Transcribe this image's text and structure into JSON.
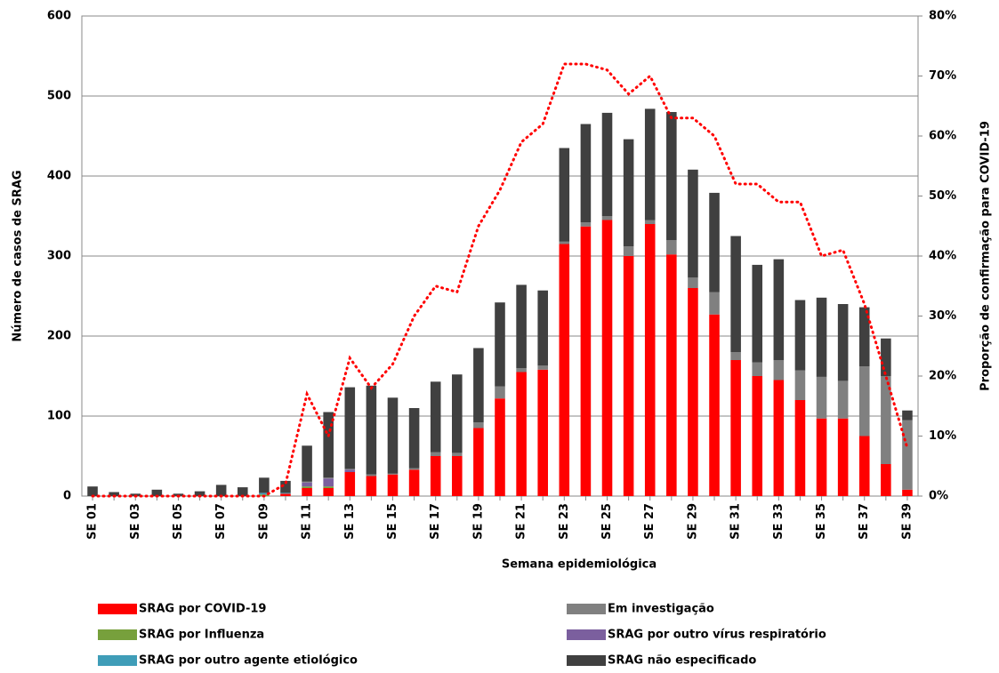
{
  "chart_data": {
    "type": "bar",
    "x_label": "Semana epidemiológica",
    "y_label": "Número de casos de SRAG",
    "y2_label": "Proporção de confirmação para COVID-19",
    "stacked": true,
    "grid": true,
    "categories": [
      "SE 01",
      null,
      "SE 03",
      null,
      "SE 05",
      null,
      "SE 07",
      null,
      "SE 09",
      null,
      "SE 11",
      null,
      "SE 13",
      null,
      "SE 15",
      null,
      "SE 17",
      null,
      "SE 19",
      null,
      "SE 21",
      null,
      "SE 23",
      null,
      "SE 25",
      null,
      "SE 27",
      null,
      "SE 29",
      null,
      "SE 31",
      null,
      "SE 33",
      null,
      "SE 35",
      null,
      "SE 37",
      null,
      "SE 39"
    ],
    "ylim": [
      0,
      600
    ],
    "yticks": [
      0,
      100,
      200,
      300,
      400,
      500,
      600
    ],
    "y2lim": [
      0,
      80
    ],
    "y2ticks": [
      {
        "value": 0,
        "label": "0%"
      },
      {
        "value": 10,
        "label": "10%"
      },
      {
        "value": 20,
        "label": "20%"
      },
      {
        "value": 30,
        "label": "30%"
      },
      {
        "value": 40,
        "label": "40%"
      },
      {
        "value": 50,
        "label": "50%"
      },
      {
        "value": 60,
        "label": "60%"
      },
      {
        "value": 70,
        "label": "70%"
      },
      {
        "value": 80,
        "label": "80%"
      }
    ],
    "series": [
      {
        "name": "SRAG por COVID-19",
        "color": "#ff0000",
        "values": [
          0,
          0,
          0,
          0,
          0,
          0,
          0,
          0,
          0,
          3,
          10,
          10,
          30,
          25,
          27,
          33,
          50,
          50,
          85,
          122,
          155,
          158,
          315,
          337,
          345,
          300,
          340,
          302,
          260,
          227,
          170,
          150,
          145,
          120,
          97,
          97,
          75,
          40,
          8
        ]
      },
      {
        "name": "SRAG por Influenza",
        "color": "#77a03c",
        "values": [
          0,
          0,
          0,
          0,
          0,
          0,
          0,
          0,
          2,
          0,
          2,
          2,
          0,
          0,
          0,
          0,
          0,
          0,
          0,
          0,
          0,
          0,
          0,
          0,
          0,
          0,
          0,
          0,
          0,
          0,
          0,
          0,
          0,
          0,
          0,
          0,
          0,
          0,
          0
        ]
      },
      {
        "name": "SRAG por outro vírus respiratório",
        "color": "#7b5f9e",
        "values": [
          0,
          0,
          0,
          0,
          0,
          0,
          0,
          0,
          0,
          0,
          5,
          10,
          3,
          0,
          0,
          0,
          0,
          0,
          0,
          0,
          0,
          0,
          0,
          0,
          0,
          0,
          0,
          0,
          0,
          0,
          0,
          0,
          0,
          0,
          0,
          0,
          0,
          0,
          0
        ]
      },
      {
        "name": "SRAG por outro agente etiológico",
        "color": "#3f9db8",
        "values": [
          0,
          0,
          0,
          0,
          0,
          0,
          0,
          0,
          2,
          1,
          0,
          0,
          0,
          0,
          0,
          0,
          0,
          0,
          0,
          0,
          0,
          0,
          0,
          0,
          0,
          0,
          0,
          0,
          0,
          0,
          0,
          0,
          0,
          0,
          0,
          0,
          0,
          0,
          0
        ]
      },
      {
        "name": "Em investigação",
        "color": "#808080",
        "values": [
          0,
          0,
          0,
          0,
          0,
          0,
          0,
          0,
          0,
          0,
          1,
          1,
          1,
          2,
          1,
          2,
          5,
          4,
          7,
          15,
          5,
          5,
          3,
          5,
          5,
          12,
          5,
          18,
          13,
          28,
          10,
          17,
          25,
          37,
          52,
          47,
          87,
          110,
          87
        ]
      },
      {
        "name": "SRAG não especificado",
        "color": "#404040",
        "values": [
          12,
          5,
          3,
          8,
          3,
          6,
          14,
          11,
          19,
          15,
          45,
          82,
          102,
          111,
          95,
          75,
          88,
          98,
          93,
          105,
          104,
          94,
          117,
          123,
          129,
          134,
          139,
          160,
          135,
          124,
          145,
          122,
          126,
          88,
          99,
          96,
          74,
          47,
          12
        ]
      },
      {
        "type": "line",
        "axis": "y2",
        "color": "#ff0000",
        "values": [
          0,
          0,
          0,
          0,
          0,
          0,
          0,
          0,
          0,
          2,
          17,
          10,
          23,
          18,
          22,
          30,
          35,
          34,
          45,
          51,
          59,
          62,
          72,
          72,
          71,
          67,
          70,
          63,
          63,
          60,
          52,
          52,
          49,
          49,
          40,
          41,
          32,
          20,
          8
        ]
      }
    ]
  }
}
